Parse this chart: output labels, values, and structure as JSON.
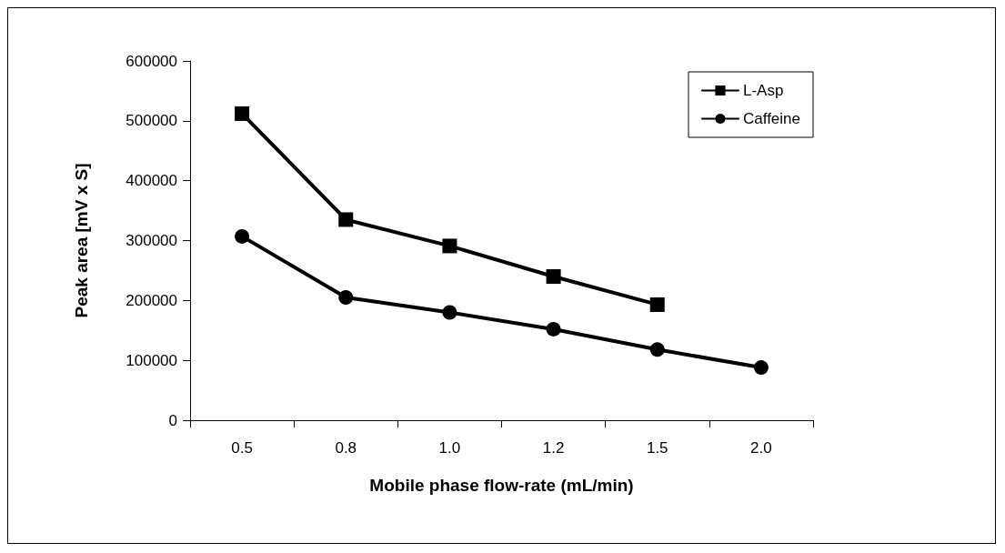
{
  "chart_data": {
    "type": "line",
    "xlabel": "Mobile phase flow-rate (mL/min)",
    "ylabel": "Peak area [mV x S]",
    "categories": [
      "0.5",
      "0.8",
      "1.0",
      "1.2",
      "1.5",
      "2.0"
    ],
    "series": [
      {
        "name": "L-Asp",
        "color": "#000000",
        "marker": "square",
        "values": [
          512000,
          335000,
          291000,
          240000,
          193000,
          null
        ]
      },
      {
        "name": "Caffeine",
        "color": "#000000",
        "marker": "circle",
        "values": [
          307000,
          205000,
          180000,
          152000,
          118000,
          88000
        ]
      }
    ],
    "ylim": [
      0,
      600000
    ],
    "yticks": [
      0,
      100000,
      200000,
      300000,
      400000,
      500000,
      600000
    ],
    "grid": false,
    "legend": "top right",
    "line_style": "solid"
  }
}
